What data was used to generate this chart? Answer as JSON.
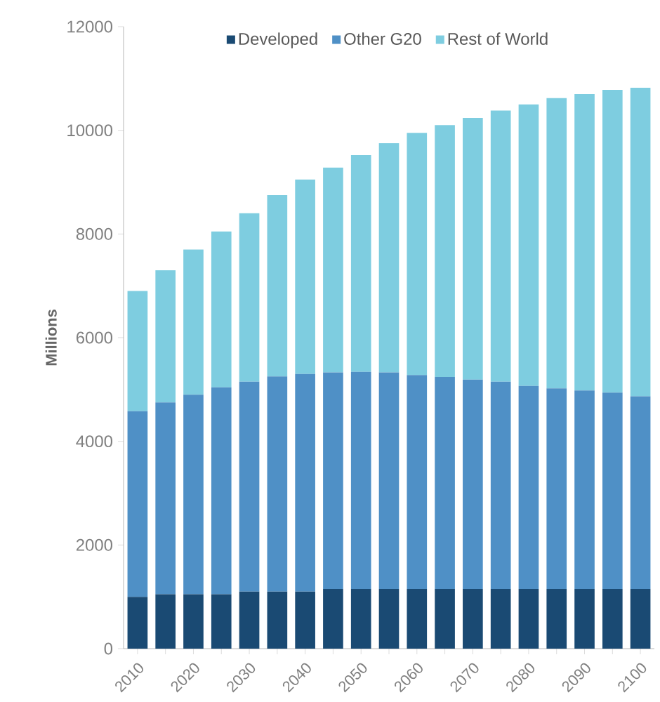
{
  "chart_data": {
    "type": "bar",
    "stacked": true,
    "ylabel": "Millions",
    "categories": [
      "2010",
      null,
      "2020",
      null,
      "2030",
      null,
      "2040",
      null,
      "2050",
      null,
      "2060",
      null,
      "2070",
      null,
      "2080",
      null,
      "2090",
      null,
      "2100"
    ],
    "series": [
      {
        "name": "Developed",
        "color": "#1a4a73",
        "values": [
          1000,
          1050,
          1050,
          1050,
          1100,
          1100,
          1100,
          1150,
          1150,
          1150,
          1150,
          1150,
          1150,
          1150,
          1150,
          1150,
          1150,
          1150,
          1150
        ]
      },
      {
        "name": "Other G20",
        "color": "#4f90c6",
        "values": [
          3580,
          3700,
          3850,
          3990,
          4050,
          4150,
          4200,
          4180,
          4190,
          4180,
          4130,
          4090,
          4040,
          4000,
          3920,
          3870,
          3830,
          3790,
          3720
        ]
      },
      {
        "name": "Rest of World",
        "color": "#7ecde0",
        "values": [
          2320,
          2550,
          2800,
          3010,
          3250,
          3500,
          3750,
          3950,
          4180,
          4420,
          4670,
          4860,
          5050,
          5230,
          5430,
          5600,
          5720,
          5840,
          5950
        ]
      }
    ],
    "ylim": [
      0,
      12000
    ],
    "yticks": [
      0,
      2000,
      4000,
      6000,
      8000,
      10000,
      12000
    ],
    "grid": false,
    "legend": "top"
  }
}
